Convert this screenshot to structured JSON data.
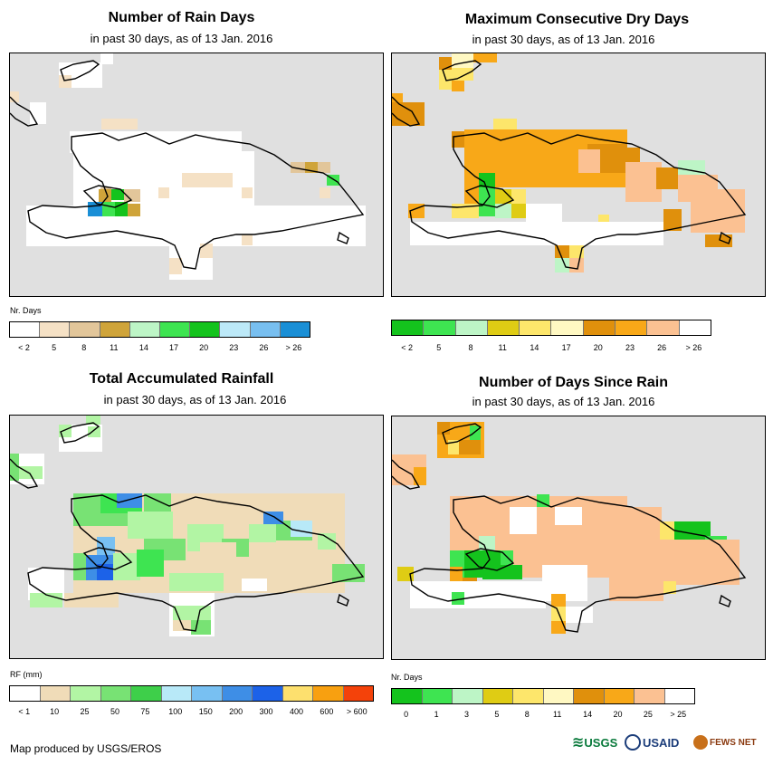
{
  "panels": [
    {
      "title": "Number of Rain Days",
      "subtitle": "in past 30 days, as of 13 Jan. 2016",
      "legend": {
        "title": "Nr. Days",
        "colors": [
          "#ffffff",
          "#f5e1c5",
          "#e2c69a",
          "#cfa43a",
          "#bdf5c6",
          "#3ee451",
          "#14c31d",
          "#bce9f8",
          "#78bff0",
          "#1a8fd6"
        ],
        "labels": [
          "< 2",
          "5",
          "8",
          "11",
          "14",
          "17",
          "20",
          "23",
          "26",
          "> 26"
        ]
      }
    },
    {
      "title": "Maximum Consecutive Dry Days",
      "subtitle": "in past 30 days, as of 13 Jan. 2016",
      "legend": {
        "title": "",
        "colors": [
          "#14c31d",
          "#3ee451",
          "#bdf5c6",
          "#dfcc14",
          "#fde66b",
          "#fff8c2",
          "#e0900c",
          "#f8a818",
          "#fbc192",
          "#ffffff"
        ],
        "labels": [
          "< 2",
          "5",
          "8",
          "11",
          "14",
          "17",
          "20",
          "23",
          "26",
          "> 26"
        ]
      }
    },
    {
      "title": "Total Accumulated Rainfall",
      "subtitle": "in past 30 days, as of 13 Jan. 2016",
      "legend": {
        "title": "RF (mm)",
        "colors": [
          "#ffffff",
          "#f0dcb8",
          "#b2f5a4",
          "#78e274",
          "#3ecf4a",
          "#b8e9f8",
          "#78c0f2",
          "#3e8ee6",
          "#1c62e8",
          "#fde06e",
          "#f8a010",
          "#f4420a"
        ],
        "labels": [
          "< 1",
          "10",
          "25",
          "50",
          "75",
          "100",
          "150",
          "200",
          "300",
          "400",
          "600",
          "> 600"
        ]
      }
    },
    {
      "title": "Number of Days Since Rain",
      "subtitle": "in past 30 days, as of 13 Jan. 2016",
      "legend": {
        "title": "Nr. Days",
        "colors": [
          "#14c31d",
          "#3ee451",
          "#bdf5c6",
          "#dfcc14",
          "#fde66b",
          "#fff8c2",
          "#e0900c",
          "#f8a818",
          "#fbc192",
          "#ffffff"
        ],
        "labels": [
          "0",
          "1",
          "3",
          "5",
          "8",
          "11",
          "14",
          "20",
          "25",
          "> 25"
        ]
      }
    }
  ],
  "footer": "Map produced by USGS/EROS",
  "logos": {
    "usgs": "USGS",
    "usaid": "USAID",
    "fewsnet": "FEWS NET"
  }
}
